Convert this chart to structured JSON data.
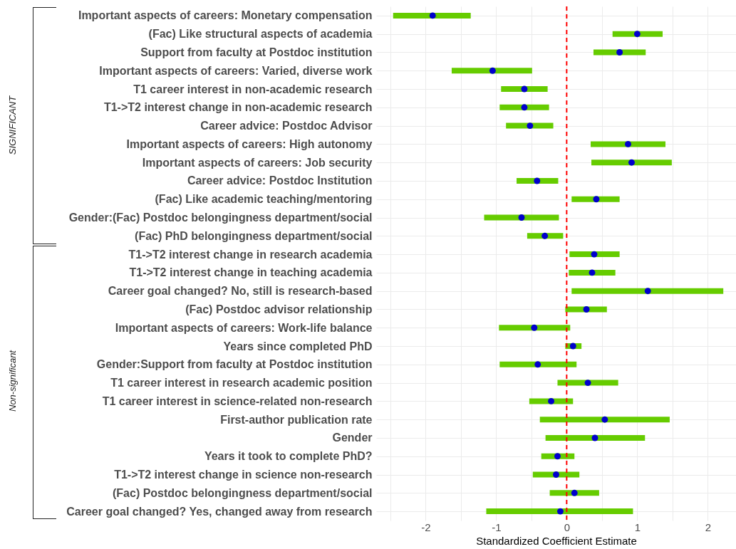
{
  "chart_data": {
    "type": "scatter",
    "orientation": "horizontal",
    "xlabel": "Standardized Coefficient Estimate",
    "categories": [
      "Important aspects of careers: Monetary compensation",
      "(Fac) Like structural aspects of academia",
      "Support from faculty at Postdoc institution",
      "Important aspects of careers: Varied, diverse work",
      "T1 career interest in non-academic research",
      "T1->T2 interest change in non-academic research",
      "Career advice: Postdoc Advisor",
      "Important aspects of careers: High autonomy",
      "Important aspects of careers: Job security",
      "Career advice: Postdoc Institution",
      "(Fac) Like academic teaching/mentoring",
      "Gender:(Fac) Postdoc belongingness department/social",
      "(Fac) PhD belongingness department/social",
      "T1->T2 interest change in research academia",
      "T1->T2 interest change in teaching academia",
      "Career goal changed? No, still is research-based",
      "(Fac) Postdoc advisor relationship",
      "Important aspects of careers: Work-life balance",
      "Years since completed PhD",
      "Gender:Support from faculty at Postdoc institution",
      "T1 career interest in research academic position",
      "T1 career interest in science-related non-research",
      "First-author publication rate",
      "Gender",
      "Years it took to complete PhD?",
      "T1->T2 interest change in science non-research",
      "(Fac) Postdoc belongingness department/social",
      "Career goal changed? Yes, changed away from research"
    ],
    "series": [
      {
        "color": "#0000cc",
        "values": [
          -1.9,
          1.0,
          0.75,
          -1.05,
          -0.6,
          -0.6,
          -0.52,
          0.87,
          0.92,
          -0.42,
          0.42,
          -0.64,
          -0.31,
          0.39,
          0.36,
          1.15,
          0.28,
          -0.46,
          0.09,
          -0.41,
          0.3,
          -0.22,
          0.54,
          0.4,
          -0.13,
          -0.15,
          0.11,
          -0.09
        ],
        "errors": [
          [
            -2.46,
            -1.36
          ],
          [
            0.65,
            1.36
          ],
          [
            0.38,
            1.12
          ],
          [
            -1.63,
            -0.49
          ],
          [
            -0.93,
            -0.27
          ],
          [
            -0.95,
            -0.25
          ],
          [
            -0.86,
            -0.19
          ],
          [
            0.34,
            1.4
          ],
          [
            0.35,
            1.49
          ],
          [
            -0.71,
            -0.12
          ],
          [
            0.07,
            0.75
          ],
          [
            -1.17,
            -0.11
          ],
          [
            -0.56,
            -0.05
          ],
          [
            0.04,
            0.75
          ],
          [
            0.03,
            0.69
          ],
          [
            0.07,
            2.22
          ],
          [
            -0.02,
            0.57
          ],
          [
            -0.96,
            0.05
          ],
          [
            -0.02,
            0.21
          ],
          [
            -0.95,
            0.14
          ],
          [
            -0.13,
            0.73
          ],
          [
            -0.53,
            0.09
          ],
          [
            -0.38,
            1.46
          ],
          [
            -0.3,
            1.11
          ],
          [
            -0.36,
            0.11
          ],
          [
            -0.48,
            0.18
          ],
          [
            -0.24,
            0.46
          ],
          [
            -1.14,
            0.94
          ]
        ]
      }
    ],
    "xlim": [
      -2.7,
      2.4
    ],
    "xticks": [
      {
        "value": -2.5,
        "label": null
      },
      -2,
      {
        "value": -1.5,
        "label": null
      },
      -1,
      {
        "value": -0.5,
        "label": null
      },
      0,
      {
        "value": 0.5,
        "label": null
      },
      1,
      {
        "value": 1.5,
        "label": null
      },
      2
    ],
    "ref_lines": [
      {
        "axis": "x",
        "value": 0,
        "color": "#ff0000",
        "line_style": "dashed"
      }
    ],
    "grid": true,
    "marker": "circle",
    "annotations": [
      "SIGNIFICANT",
      "Non-significant"
    ]
  }
}
